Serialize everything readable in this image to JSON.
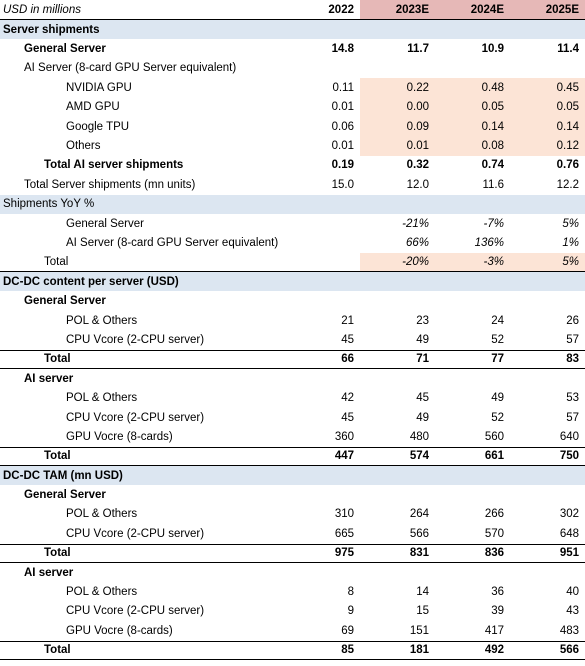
{
  "header": {
    "label": "USD in millions",
    "years": [
      "2022",
      "2023E",
      "2024E",
      "2025E"
    ]
  },
  "colors": {
    "section_bg": "#dce6f1",
    "highlight_bg": "#fce4d6",
    "header_highlight_bg": "#e6b8b7"
  },
  "rows": [
    {
      "label": "Server shipments",
      "type": "section",
      "values": [
        "",
        "",
        "",
        ""
      ]
    },
    {
      "label": "General Server",
      "indent": 1,
      "bold": true,
      "values": [
        "14.8",
        "11.7",
        "10.9",
        "11.4"
      ]
    },
    {
      "label": "AI Server (8-card GPU Server equivalent)",
      "indent": 1,
      "values": [
        "",
        "",
        "",
        ""
      ]
    },
    {
      "label": "NVIDIA GPU",
      "indent": 3,
      "values": [
        "0.11",
        "0.22",
        "0.48",
        "0.45"
      ],
      "hi": true
    },
    {
      "label": "AMD GPU",
      "indent": 3,
      "values": [
        "0.01",
        "0.00",
        "0.05",
        "0.05"
      ],
      "hi": true
    },
    {
      "label": "Google TPU",
      "indent": 3,
      "values": [
        "0.06",
        "0.09",
        "0.14",
        "0.14"
      ],
      "hi": true
    },
    {
      "label": "Others",
      "indent": 3,
      "values": [
        "0.01",
        "0.01",
        "0.08",
        "0.12"
      ],
      "hi": true
    },
    {
      "label": "Total AI server shipments",
      "indent": 2,
      "bold": true,
      "values": [
        "0.19",
        "0.32",
        "0.74",
        "0.76"
      ]
    },
    {
      "label": "Total Server shipments (mn units)",
      "indent": 1,
      "values": [
        "15.0",
        "12.0",
        "11.6",
        "12.2"
      ]
    },
    {
      "label": "Shipments YoY %",
      "type": "section-plain",
      "values": [
        "",
        "",
        "",
        ""
      ]
    },
    {
      "label": "General Server",
      "indent": 3,
      "italic": true,
      "values": [
        "",
        "-21%",
        "-7%",
        "5%"
      ]
    },
    {
      "label": "AI Server (8-card GPU Server equivalent)",
      "indent": 3,
      "italic": true,
      "values": [
        "",
        "66%",
        "136%",
        "1%"
      ]
    },
    {
      "label": "Total",
      "indent": 2,
      "italic": true,
      "values": [
        "",
        "-20%",
        "-3%",
        "5%"
      ],
      "hi": true,
      "borderBottom": true
    },
    {
      "label": "DC-DC content per server (USD)",
      "type": "section",
      "values": [
        "",
        "",
        "",
        ""
      ]
    },
    {
      "label": "General Server",
      "indent": 1,
      "bold": true,
      "values": [
        "",
        "",
        "",
        ""
      ]
    },
    {
      "label": "POL & Others",
      "indent": 3,
      "values": [
        "21",
        "23",
        "24",
        "26"
      ]
    },
    {
      "label": "CPU Vcore (2-CPU server)",
      "indent": 3,
      "values": [
        "45",
        "49",
        "52",
        "57"
      ]
    },
    {
      "label": "Total",
      "indent": 2,
      "bold": true,
      "values": [
        "66",
        "71",
        "77",
        "83"
      ],
      "borderTop": true,
      "borderBottom": true
    },
    {
      "label": "AI server",
      "indent": 1,
      "bold": true,
      "values": [
        "",
        "",
        "",
        ""
      ]
    },
    {
      "label": "POL & Others",
      "indent": 3,
      "values": [
        "42",
        "45",
        "49",
        "53"
      ]
    },
    {
      "label": "CPU Vcore (2-CPU server)",
      "indent": 3,
      "values": [
        "45",
        "49",
        "52",
        "57"
      ]
    },
    {
      "label": "GPU Vocre (8-cards)",
      "indent": 3,
      "values": [
        "360",
        "480",
        "560",
        "640"
      ]
    },
    {
      "label": "Total",
      "indent": 2,
      "bold": true,
      "values": [
        "447",
        "574",
        "661",
        "750"
      ],
      "borderTop": true,
      "borderBottom": true
    },
    {
      "label": "DC-DC TAM (mn USD)",
      "type": "section",
      "values": [
        "",
        "",
        "",
        ""
      ]
    },
    {
      "label": "General Server",
      "indent": 1,
      "bold": true,
      "values": [
        "",
        "",
        "",
        ""
      ]
    },
    {
      "label": "POL & Others",
      "indent": 3,
      "values": [
        "310",
        "264",
        "266",
        "302"
      ]
    },
    {
      "label": "CPU Vcore (2-CPU server)",
      "indent": 3,
      "values": [
        "665",
        "566",
        "570",
        "648"
      ]
    },
    {
      "label": "Total",
      "indent": 2,
      "bold": true,
      "values": [
        "975",
        "831",
        "836",
        "951"
      ],
      "borderTop": true,
      "borderBottom": true
    },
    {
      "label": "AI server",
      "indent": 1,
      "bold": true,
      "values": [
        "",
        "",
        "",
        ""
      ]
    },
    {
      "label": "POL & Others",
      "indent": 3,
      "values": [
        "8",
        "14",
        "36",
        "40"
      ]
    },
    {
      "label": "CPU Vcore (2-CPU server)",
      "indent": 3,
      "values": [
        "9",
        "15",
        "39",
        "43"
      ]
    },
    {
      "label": "GPU Vocre (8-cards)",
      "indent": 3,
      "values": [
        "69",
        "151",
        "417",
        "483"
      ]
    },
    {
      "label": "Total",
      "indent": 2,
      "bold": true,
      "values": [
        "85",
        "181",
        "492",
        "566"
      ],
      "borderTop": true,
      "borderBottom": true
    }
  ]
}
